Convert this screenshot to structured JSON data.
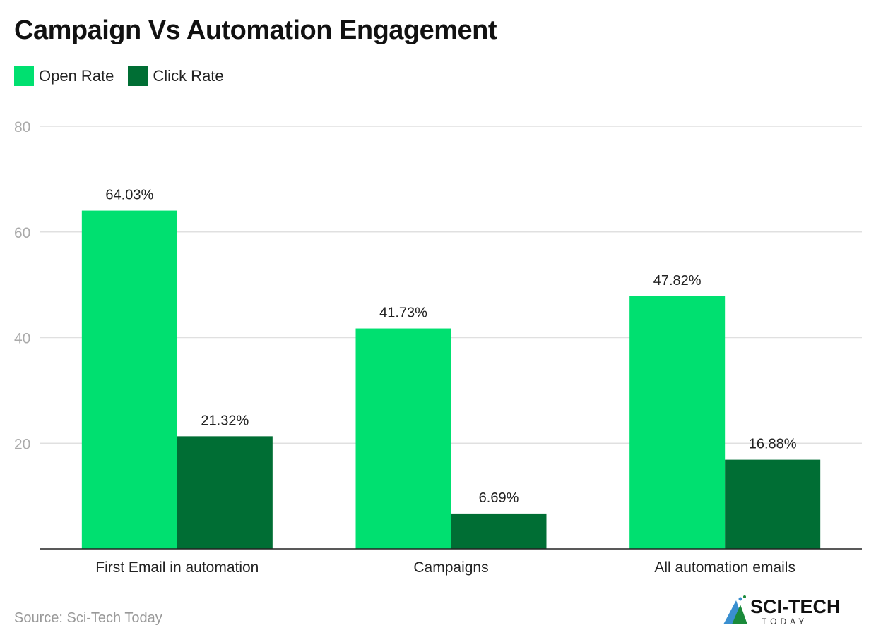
{
  "chart_data": {
    "type": "bar",
    "title": "Campaign Vs Automation Engagement",
    "categories": [
      "First Email in automation",
      "Campaigns",
      "All automation emails"
    ],
    "series": [
      {
        "name": "Open Rate",
        "values": [
          64.03,
          41.73,
          47.82
        ],
        "labels": [
          "64.03%",
          "41.73%",
          "47.82%"
        ],
        "color": "#00e070"
      },
      {
        "name": "Click Rate",
        "values": [
          21.32,
          6.69,
          16.88
        ],
        "labels": [
          "21.32%",
          "6.69%",
          "16.88%"
        ],
        "color": "#006e34"
      }
    ],
    "ylim": [
      0,
      80
    ],
    "yticks": [
      20,
      40,
      60,
      80
    ],
    "grid": true,
    "legend": "top-left",
    "xlabel": "",
    "ylabel": ""
  },
  "source": "Source: Sci-Tech Today",
  "logo": {
    "text": "SCI-TECH",
    "subtext": "TODAY"
  }
}
